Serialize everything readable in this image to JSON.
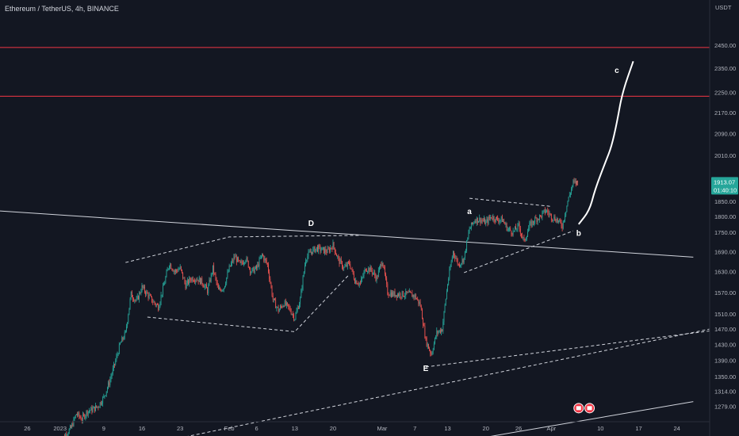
{
  "header": {
    "symbol_title": "Ethereum / TetherUS, 4h, BINANCE"
  },
  "price_axis": {
    "currency": "USDT",
    "last_price": "1913.07",
    "countdown": "01:40:10",
    "colors": {
      "background": "#131722",
      "axis_text": "#b2b5be",
      "last_price_badge": "#26a69a",
      "resistance_line": "#f23645"
    }
  },
  "chart_data": {
    "type": "candlestick",
    "title": "Ethereum / TetherUS, 4h, BINANCE",
    "y_axis": {
      "label": "USDT",
      "ticks": [
        2450,
        2350,
        2250,
        2170,
        2090,
        2010,
        1850,
        1800,
        1750,
        1690,
        1630,
        1570,
        1510,
        1470,
        1430,
        1390,
        1350,
        1314,
        1279
      ],
      "tick_labels": [
        "2450.00",
        "2350.00",
        "2250.00",
        "2170.00",
        "2090.00",
        "2010.00",
        "1850.00",
        "1800.00",
        "1750.00",
        "1690.00",
        "1630.00",
        "1570.00",
        "1510.00",
        "1470.00",
        "1430.00",
        "1390.00",
        "1350.00",
        "1314.00",
        "1279.00"
      ],
      "scale": "log"
    },
    "x_axis": {
      "tick_labels": [
        "26",
        "2023",
        "9",
        "16",
        "23",
        "Feb",
        "6",
        "13",
        "20",
        "Mar",
        "7",
        "13",
        "20",
        "26",
        "Apr",
        "10",
        "17",
        "24"
      ],
      "tick_dates": [
        "2022-12-26",
        "2023-01-01",
        "2023-01-09",
        "2023-01-16",
        "2023-01-23",
        "2023-02-01",
        "2023-02-06",
        "2023-02-13",
        "2023-02-20",
        "2023-03-01",
        "2023-03-07",
        "2023-03-13",
        "2023-03-20",
        "2023-03-26",
        "2023-04-01",
        "2023-04-10",
        "2023-04-17",
        "2023-04-24"
      ]
    },
    "series": [
      {
        "path_close": [
          [
            "2023-01-01",
            1200
          ],
          [
            "2023-01-02",
            1215
          ],
          [
            "2023-01-03",
            1230
          ],
          [
            "2023-01-04",
            1262
          ],
          [
            "2023-01-05",
            1250
          ],
          [
            "2023-01-06",
            1268
          ],
          [
            "2023-01-07",
            1272
          ],
          [
            "2023-01-08",
            1280
          ],
          [
            "2023-01-09",
            1300
          ],
          [
            "2023-01-10",
            1335
          ],
          [
            "2023-01-11",
            1380
          ],
          [
            "2023-01-12",
            1430
          ],
          [
            "2023-01-13",
            1460
          ],
          [
            "2023-01-14",
            1565
          ],
          [
            "2023-01-15",
            1545
          ],
          [
            "2023-01-16",
            1585
          ],
          [
            "2023-01-17",
            1565
          ],
          [
            "2023-01-18",
            1545
          ],
          [
            "2023-01-19",
            1530
          ],
          [
            "2023-01-20",
            1590
          ],
          [
            "2023-01-21",
            1655
          ],
          [
            "2023-01-22",
            1630
          ],
          [
            "2023-01-23",
            1640
          ],
          [
            "2023-01-24",
            1590
          ],
          [
            "2023-01-25",
            1610
          ],
          [
            "2023-01-26",
            1610
          ],
          [
            "2023-01-27",
            1600
          ],
          [
            "2023-01-28",
            1575
          ],
          [
            "2023-01-29",
            1640
          ],
          [
            "2023-01-30",
            1575
          ],
          [
            "2023-01-31",
            1585
          ],
          [
            "2023-02-01",
            1640
          ],
          [
            "2023-02-02",
            1675
          ],
          [
            "2023-02-03",
            1650
          ],
          [
            "2023-02-04",
            1670
          ],
          [
            "2023-02-05",
            1630
          ],
          [
            "2023-02-06",
            1640
          ],
          [
            "2023-02-07",
            1680
          ],
          [
            "2023-02-08",
            1650
          ],
          [
            "2023-02-09",
            1550
          ],
          [
            "2023-02-10",
            1520
          ],
          [
            "2023-02-11",
            1540
          ],
          [
            "2023-02-12",
            1525
          ],
          [
            "2023-02-13",
            1500
          ],
          [
            "2023-02-14",
            1550
          ],
          [
            "2023-02-15",
            1670
          ],
          [
            "2023-02-16",
            1690
          ],
          [
            "2023-02-17",
            1700
          ],
          [
            "2023-02-18",
            1695
          ],
          [
            "2023-02-19",
            1690
          ],
          [
            "2023-02-20",
            1710
          ],
          [
            "2023-02-21",
            1665
          ],
          [
            "2023-02-22",
            1640
          ],
          [
            "2023-02-23",
            1655
          ],
          [
            "2023-02-24",
            1605
          ],
          [
            "2023-02-25",
            1595
          ],
          [
            "2023-02-26",
            1640
          ],
          [
            "2023-02-27",
            1635
          ],
          [
            "2023-02-28",
            1610
          ],
          [
            "2023-03-01",
            1665
          ],
          [
            "2023-03-02",
            1570
          ],
          [
            "2023-03-03",
            1565
          ],
          [
            "2023-03-04",
            1565
          ],
          [
            "2023-03-05",
            1565
          ],
          [
            "2023-03-06",
            1565
          ],
          [
            "2023-03-07",
            1560
          ],
          [
            "2023-03-08",
            1535
          ],
          [
            "2023-03-09",
            1440
          ],
          [
            "2023-03-10",
            1405
          ],
          [
            "2023-03-11",
            1460
          ],
          [
            "2023-03-12",
            1470
          ],
          [
            "2023-03-13",
            1595
          ],
          [
            "2023-03-14",
            1690
          ],
          [
            "2023-03-15",
            1650
          ],
          [
            "2023-03-16",
            1670
          ],
          [
            "2023-03-17",
            1760
          ],
          [
            "2023-03-18",
            1790
          ],
          [
            "2023-03-19",
            1790
          ],
          [
            "2023-03-20",
            1780
          ],
          [
            "2023-03-21",
            1800
          ],
          [
            "2023-03-22",
            1790
          ],
          [
            "2023-03-23",
            1790
          ],
          [
            "2023-03-24",
            1760
          ],
          [
            "2023-03-25",
            1750
          ],
          [
            "2023-03-26",
            1770
          ],
          [
            "2023-03-27",
            1720
          ],
          [
            "2023-03-28",
            1770
          ],
          [
            "2023-03-29",
            1790
          ],
          [
            "2023-03-30",
            1800
          ],
          [
            "2023-03-31",
            1820
          ],
          [
            "2023-04-01",
            1800
          ],
          [
            "2023-04-02",
            1790
          ],
          [
            "2023-04-03",
            1770
          ],
          [
            "2023-04-04",
            1850
          ],
          [
            "2023-04-05",
            1913
          ]
        ],
        "last_close": 1913.07
      }
    ],
    "horizontal_lines": [
      {
        "price": 2440,
        "color": "#f23645"
      },
      {
        "price": 2235,
        "color": "#f23645"
      }
    ],
    "annotations": [
      {
        "text": "D",
        "date": "2023-02-16",
        "price": 1770
      },
      {
        "text": "E",
        "date": "2023-03-09",
        "price": 1363
      },
      {
        "text": "a",
        "date": "2023-03-17",
        "price": 1808
      },
      {
        "text": "b",
        "date": "2023-04-06",
        "price": 1738
      },
      {
        "text": "c",
        "date": "2023-04-13",
        "price": 2330
      }
    ],
    "trendlines": [
      {
        "style": "solid",
        "points": [
          [
            "2022-12-21",
            1818
          ],
          [
            "2023-04-27",
            1673
          ]
        ]
      },
      {
        "style": "dashed",
        "points": [
          [
            "2023-01-17",
            1502
          ],
          [
            "2023-02-13",
            1463
          ],
          [
            "2023-02-23",
            1622
          ]
        ]
      },
      {
        "style": "dashed",
        "points": [
          [
            "2023-01-13",
            1657
          ],
          [
            "2023-02-01",
            1735
          ],
          [
            "2023-02-25",
            1740
          ]
        ]
      },
      {
        "style": "dashed",
        "points": [
          [
            "2023-01-22",
            1206
          ],
          [
            "2023-04-30",
            1470
          ]
        ]
      },
      {
        "style": "dashed",
        "points": [
          [
            "2023-03-09",
            1373
          ],
          [
            "2023-04-30",
            1465
          ]
        ]
      },
      {
        "style": "dashed",
        "points": [
          [
            "2023-03-16",
            1627
          ],
          [
            "2023-04-05",
            1754
          ]
        ]
      },
      {
        "style": "dashed",
        "points": [
          [
            "2023-03-17",
            1860
          ],
          [
            "2023-04-01",
            1833
          ]
        ]
      },
      {
        "style": "solid",
        "points": [
          [
            "2023-03-20",
            1210
          ],
          [
            "2023-04-27",
            1290
          ]
        ]
      }
    ],
    "projection": {
      "style": "freehand",
      "points": [
        [
          "2023-04-06",
          1775
        ],
        [
          "2023-04-08",
          1820
        ],
        [
          "2023-04-09",
          1890
        ],
        [
          "2023-04-11",
          1990
        ],
        [
          "2023-04-12",
          2040
        ],
        [
          "2023-04-13",
          2130
        ],
        [
          "2023-04-14",
          2250
        ],
        [
          "2023-04-16",
          2380
        ]
      ]
    },
    "markers": [
      {
        "icon": "flag-icon",
        "date": "2023-04-06",
        "price": 1275
      },
      {
        "icon": "flag-icon",
        "date": "2023-04-08",
        "price": 1275
      }
    ],
    "grid": false
  }
}
